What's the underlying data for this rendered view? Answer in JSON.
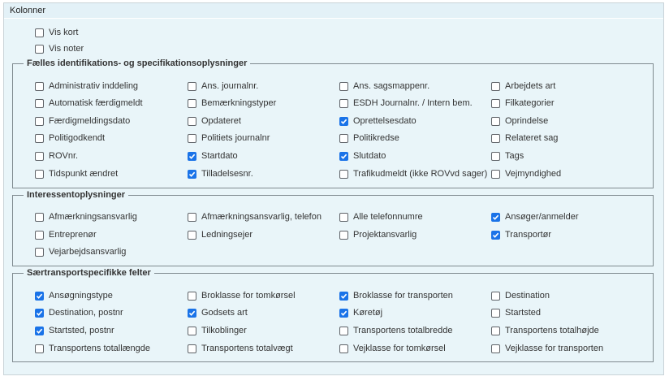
{
  "header": {
    "title": "Kolonner"
  },
  "options": [
    {
      "label": "Vis kort",
      "checked": false
    },
    {
      "label": "Vis noter",
      "checked": false
    }
  ],
  "groups": [
    {
      "legend": "Fælles identifikations- og specifikationsoplysninger",
      "items": [
        {
          "label": "Administrativ inddeling",
          "checked": false
        },
        {
          "label": "Ans. journalnr.",
          "checked": false
        },
        {
          "label": "Ans. sagsmappenr.",
          "checked": false
        },
        {
          "label": "Arbejdets art",
          "checked": false
        },
        {
          "label": "Automatisk færdigmeldt",
          "checked": false
        },
        {
          "label": "Bemærkningstyper",
          "checked": false
        },
        {
          "label": "ESDH Journalnr. / Intern bem.",
          "checked": false
        },
        {
          "label": "Filkategorier",
          "checked": false
        },
        {
          "label": "Færdigmeldingsdato",
          "checked": false
        },
        {
          "label": "Opdateret",
          "checked": false
        },
        {
          "label": "Oprettelsesdato",
          "checked": true
        },
        {
          "label": "Oprindelse",
          "checked": false
        },
        {
          "label": "Politigodkendt",
          "checked": false
        },
        {
          "label": "Politiets journalnr",
          "checked": false
        },
        {
          "label": "Politikredse",
          "checked": false
        },
        {
          "label": "Relateret sag",
          "checked": false
        },
        {
          "label": "ROVnr.",
          "checked": false
        },
        {
          "label": "Startdato",
          "checked": true
        },
        {
          "label": "Slutdato",
          "checked": true
        },
        {
          "label": "Tags",
          "checked": false
        },
        {
          "label": "Tidspunkt ændret",
          "checked": false
        },
        {
          "label": "Tilladelsesnr.",
          "checked": true
        },
        {
          "label": "Trafikudmeldt (ikke ROVvd sager)",
          "checked": false
        },
        {
          "label": "Vejmyndighed",
          "checked": false
        }
      ]
    },
    {
      "legend": "Interessentoplysninger",
      "items": [
        {
          "label": "Afmærkningsansvarlig",
          "checked": false
        },
        {
          "label": "Afmærkningsansvarlig, telefon",
          "checked": false
        },
        {
          "label": "Alle telefonnumre",
          "checked": false
        },
        {
          "label": "Ansøger/anmelder",
          "checked": true
        },
        {
          "label": "Entreprenør",
          "checked": false
        },
        {
          "label": "Ledningsejer",
          "checked": false
        },
        {
          "label": "Projektansvarlig",
          "checked": false
        },
        {
          "label": "Transportør",
          "checked": true
        },
        {
          "label": "Vejarbejdsansvarlig",
          "checked": false
        }
      ]
    },
    {
      "legend": "Særtransportspecifikke felter",
      "items": [
        {
          "label": "Ansøgningstype",
          "checked": true
        },
        {
          "label": "Broklasse for tomkørsel",
          "checked": false
        },
        {
          "label": "Broklasse for transporten",
          "checked": true
        },
        {
          "label": "Destination",
          "checked": false
        },
        {
          "label": "Destination, postnr",
          "checked": true
        },
        {
          "label": "Godsets art",
          "checked": true
        },
        {
          "label": "Køretøj",
          "checked": true
        },
        {
          "label": "Startsted",
          "checked": false
        },
        {
          "label": "Startsted, postnr",
          "checked": true
        },
        {
          "label": "Tilkoblinger",
          "checked": false
        },
        {
          "label": "Transportens totalbredde",
          "checked": false
        },
        {
          "label": "Transportens totalhøjde",
          "checked": false
        },
        {
          "label": "Transportens totallængde",
          "checked": false
        },
        {
          "label": "Transportens totalvægt",
          "checked": false
        },
        {
          "label": "Vejklasse for tomkørsel",
          "checked": false
        },
        {
          "label": "Vejklasse for transporten",
          "checked": false
        }
      ]
    }
  ]
}
